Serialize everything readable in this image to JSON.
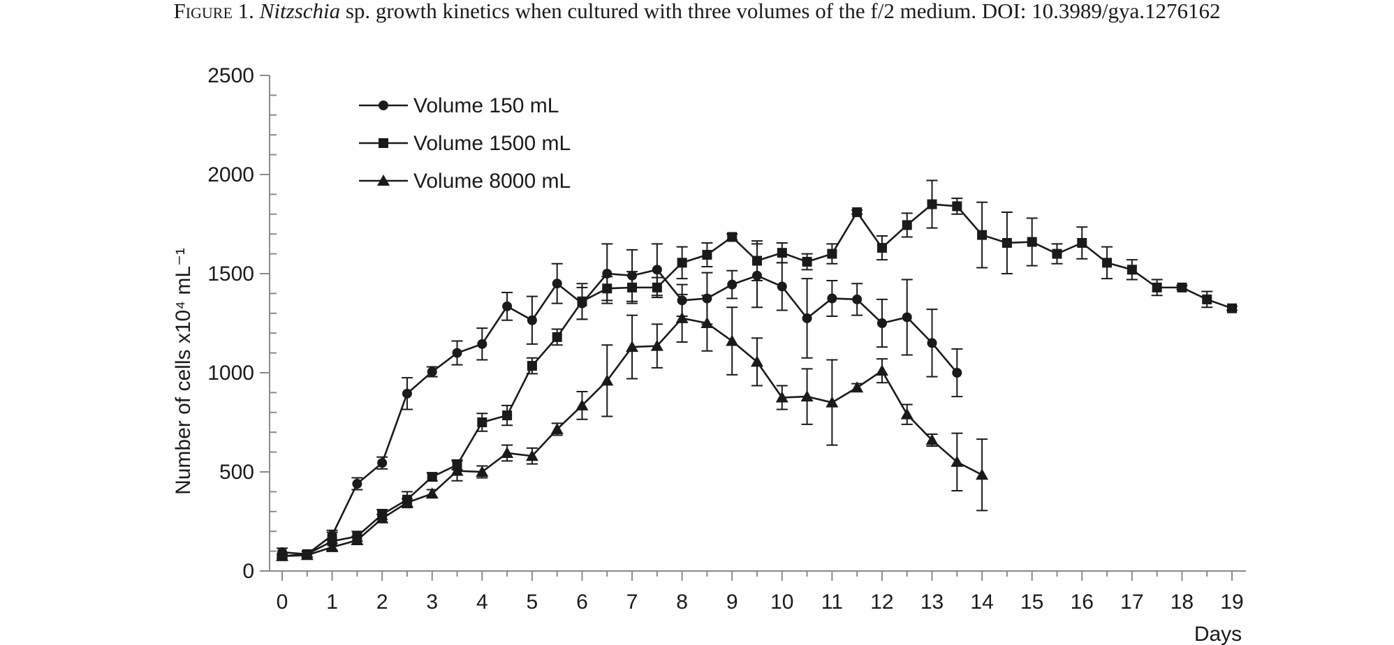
{
  "caption": {
    "label": "Figure 1.",
    "species": "Nitzschia",
    "text": " sp. growth kinetics when cultured with three volumes of the f/2 medium. DOI: 10.3989/gya.1276162"
  },
  "chart_data": {
    "type": "line",
    "title": "",
    "xlabel": "Days",
    "ylabel": "Number of cells x10⁴ mL⁻¹",
    "xlim": [
      0,
      19
    ],
    "ylim": [
      0,
      2500
    ],
    "xticks": [
      0,
      1,
      2,
      3,
      4,
      5,
      6,
      7,
      8,
      9,
      10,
      11,
      12,
      13,
      14,
      15,
      16,
      17,
      18,
      19
    ],
    "yticks": [
      0,
      500,
      1000,
      1500,
      2000,
      2500
    ],
    "grid": false,
    "legend_position": "top-left",
    "color": "#1a1a1a",
    "series": [
      {
        "name": "Volume 150 mL",
        "marker": "circle",
        "x": [
          0,
          0.5,
          1,
          1.5,
          2,
          2.5,
          3,
          3.5,
          4,
          4.5,
          5,
          5.5,
          6,
          6.5,
          7,
          7.5,
          8,
          8.5,
          9,
          9.5,
          10,
          10.5,
          11,
          11.5,
          12,
          12.5,
          13,
          13.5
        ],
        "values": [
          95,
          85,
          180,
          440,
          545,
          895,
          1005,
          1100,
          1145,
          1335,
          1265,
          1450,
          1350,
          1500,
          1490,
          1520,
          1365,
          1375,
          1445,
          1490,
          1435,
          1275,
          1375,
          1370,
          1250,
          1280,
          1150,
          1000
        ],
        "errors": [
          20,
          15,
          25,
          30,
          30,
          80,
          25,
          60,
          80,
          70,
          120,
          100,
          80,
          150,
          130,
          130,
          80,
          130,
          70,
          160,
          120,
          200,
          90,
          80,
          120,
          190,
          170,
          120
        ]
      },
      {
        "name": "Volume 1500 mL",
        "marker": "square",
        "x": [
          0,
          0.5,
          1,
          1.5,
          2,
          2.5,
          3,
          3.5,
          4,
          4.5,
          5,
          5.5,
          6,
          6.5,
          7,
          7.5,
          8,
          8.5,
          9,
          9.5,
          10,
          10.5,
          11,
          11.5,
          12,
          12.5,
          13,
          13.5,
          14,
          14.5,
          15,
          15.5,
          16,
          16.5,
          17,
          17.5,
          18,
          18.5,
          19
        ],
        "values": [
          75,
          85,
          150,
          175,
          285,
          360,
          475,
          535,
          750,
          785,
          1035,
          1180,
          1360,
          1425,
          1430,
          1430,
          1555,
          1595,
          1685,
          1565,
          1605,
          1560,
          1600,
          1810,
          1630,
          1745,
          1850,
          1840,
          1695,
          1655,
          1660,
          1600,
          1655,
          1555,
          1520,
          1430,
          1430,
          1370,
          1325
        ],
        "errors": [
          10,
          15,
          45,
          25,
          25,
          40,
          20,
          25,
          45,
          50,
          40,
          40,
          90,
          60,
          80,
          50,
          80,
          60,
          15,
          100,
          50,
          40,
          50,
          10,
          60,
          60,
          120,
          40,
          165,
          155,
          120,
          50,
          80,
          80,
          50,
          40,
          10,
          40,
          10
        ]
      },
      {
        "name": "Volume 8000 mL",
        "marker": "triangle",
        "x": [
          0,
          0.5,
          1,
          1.5,
          2,
          2.5,
          3,
          3.5,
          4,
          4.5,
          5,
          5.5,
          6,
          6.5,
          7,
          7.5,
          8,
          8.5,
          9,
          9.5,
          10,
          10.5,
          11,
          11.5,
          12,
          12.5,
          13,
          13.5,
          14
        ],
        "values": [
          75,
          80,
          120,
          155,
          265,
          345,
          390,
          505,
          500,
          595,
          580,
          715,
          835,
          960,
          1130,
          1135,
          1275,
          1250,
          1160,
          1055,
          875,
          880,
          850,
          925,
          1010,
          790,
          660,
          550,
          485
        ],
        "errors": [
          10,
          10,
          20,
          20,
          20,
          20,
          20,
          50,
          30,
          40,
          40,
          30,
          70,
          180,
          160,
          110,
          120,
          140,
          170,
          120,
          60,
          140,
          215,
          20,
          60,
          50,
          30,
          145,
          180
        ]
      }
    ]
  }
}
